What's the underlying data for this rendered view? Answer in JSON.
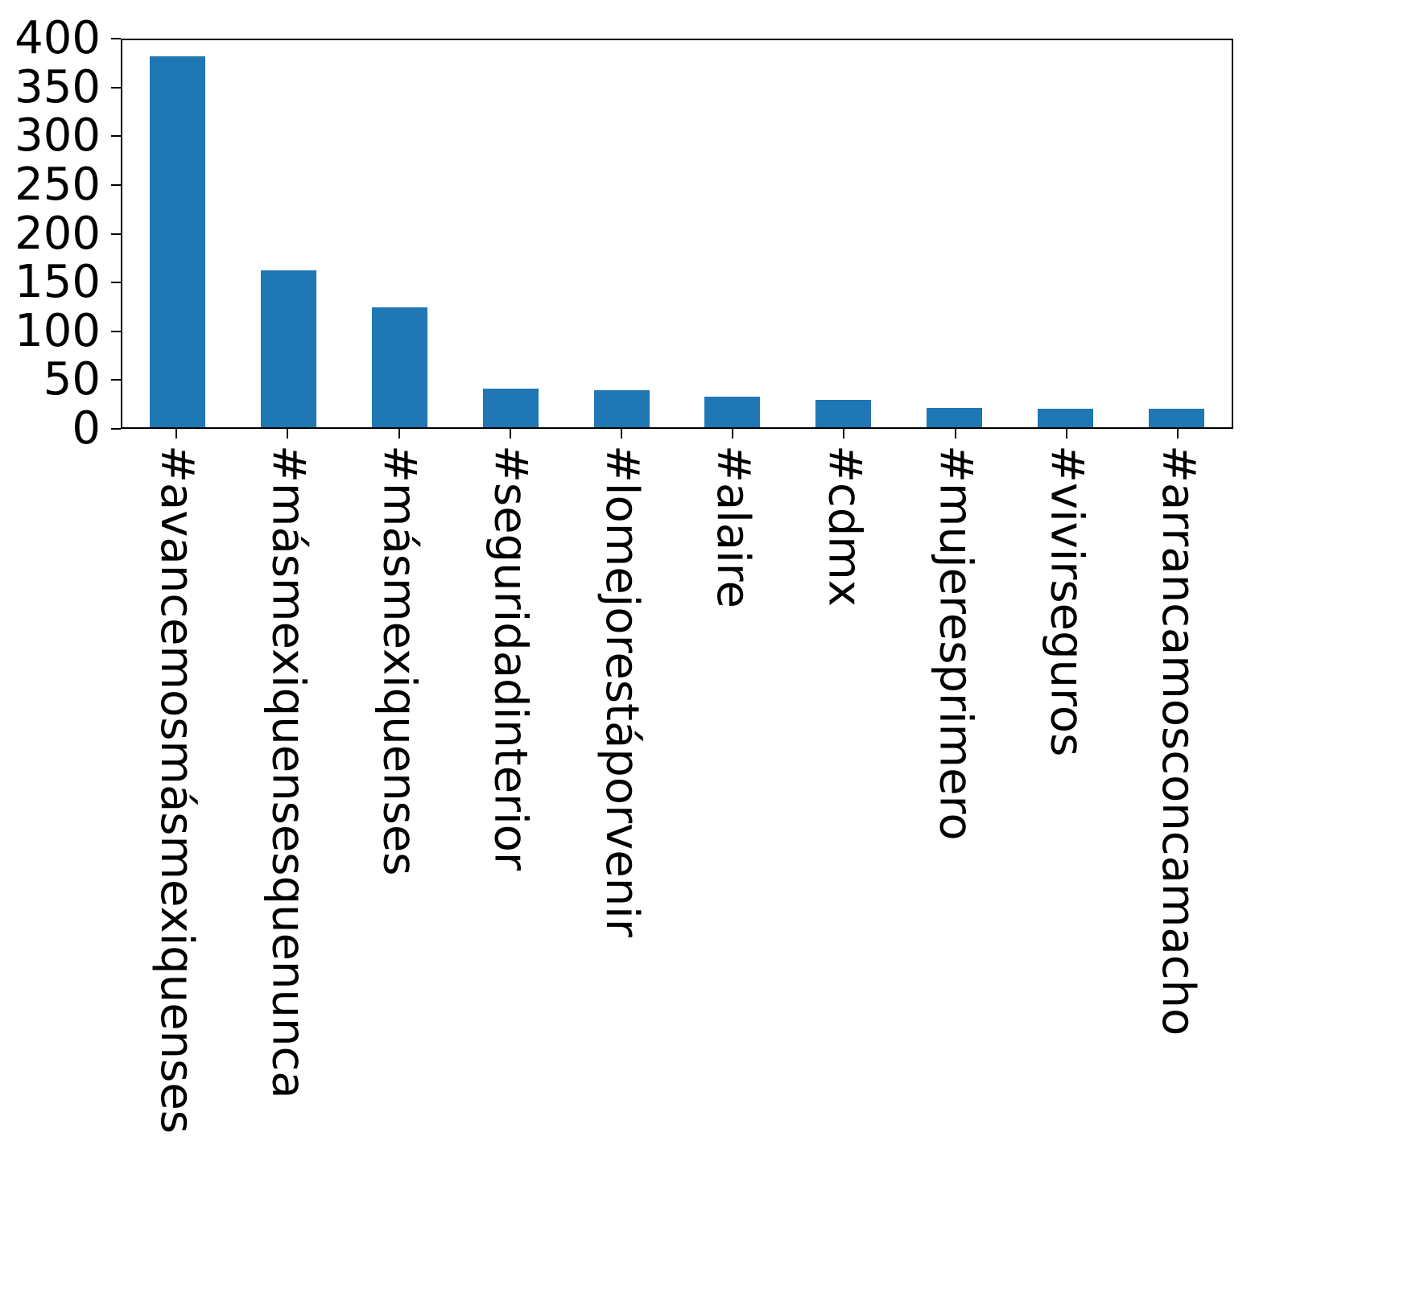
{
  "chart_data": {
    "type": "bar",
    "title": "",
    "xlabel": "",
    "ylabel": "",
    "categories": [
      "#avancemosmásmexiquenses",
      "#másmexiquensesquenunca",
      "#másmexiquenses",
      "#seguridadinterior",
      "#lomejorestáporvenir",
      "#alaire",
      "#cdmx",
      "#mujeresprimero",
      "#vivirseguros",
      "#arrancamosconcamacho"
    ],
    "values": [
      383,
      162,
      124,
      40,
      38,
      32,
      28,
      20,
      19,
      19
    ],
    "ylim": [
      0,
      400
    ],
    "yticks": [
      0,
      50,
      100,
      150,
      200,
      250,
      300,
      350,
      400
    ],
    "bar_color": "#1f77b4",
    "axis_color": "#000000",
    "grid": false,
    "legend": "none",
    "x_tick_rotation": "vertical",
    "bar_width_fraction": 0.5
  }
}
